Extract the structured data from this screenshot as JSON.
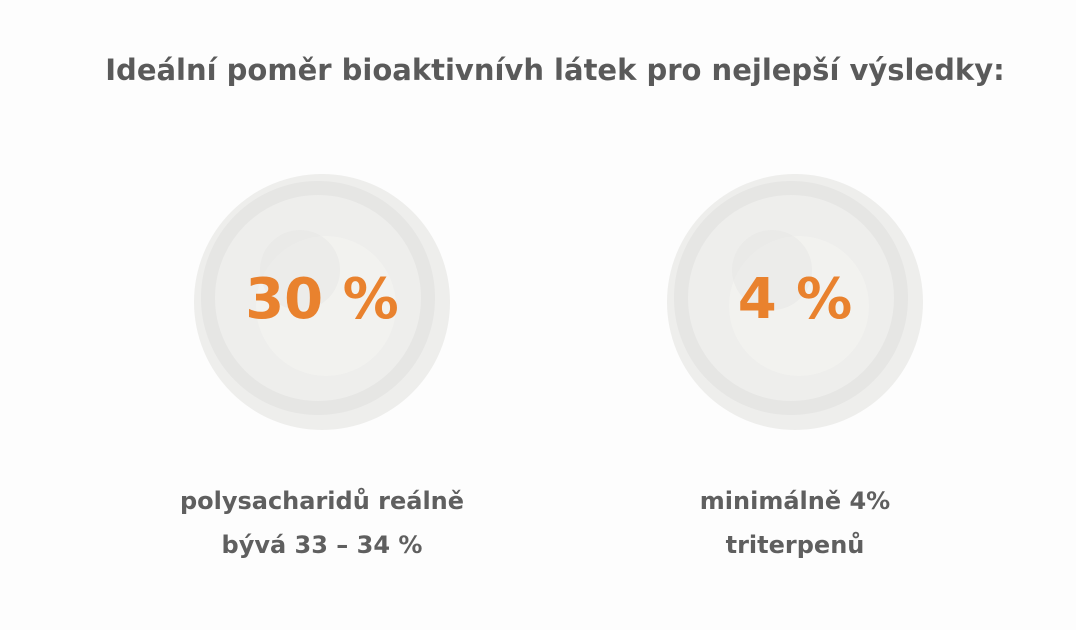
{
  "title": "Ideální poměr bioaktivnívh látek pro nejlepší výsledky:",
  "items": [
    {
      "value_label": "30 %",
      "caption": [
        "polysacharidů reálně",
        "bývá 33 – 34 %"
      ]
    },
    {
      "value_label": "4 %",
      "caption": [
        "minimálně 4%",
        "triterpenů"
      ]
    }
  ]
}
